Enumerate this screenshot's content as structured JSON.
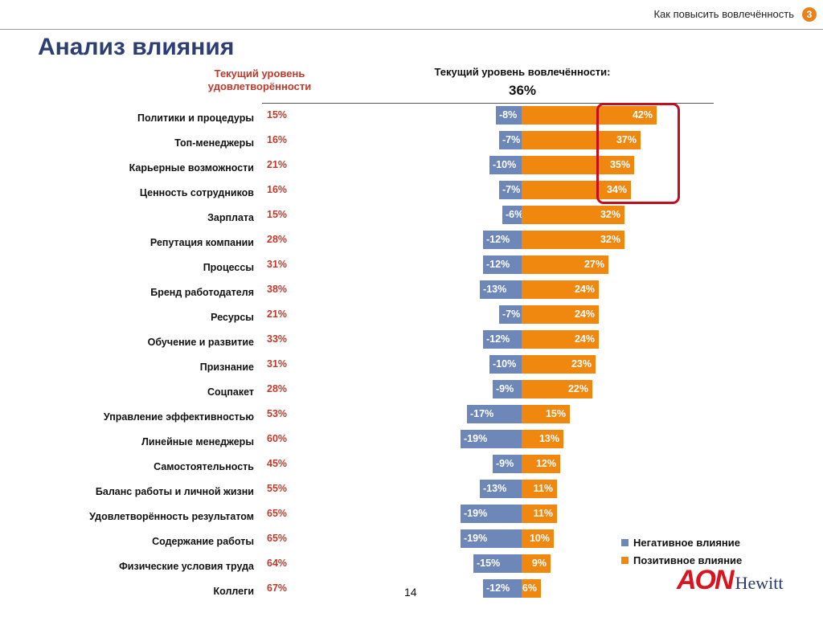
{
  "header": {
    "section_title": "Как повысить вовлечённость",
    "section_number": "3",
    "page_title": "Анализ влияния",
    "satisfaction_header": "Текущий уровень удовлетворённости",
    "engagement_header": "Текущий уровень вовлечённости:",
    "engagement_value": "36%"
  },
  "colors": {
    "negative": "#6d87b8",
    "positive": "#f0870f",
    "title": "#2c3e73",
    "satisfaction": "#c0392b",
    "highlight": "#c40e1e"
  },
  "chart_data": {
    "type": "bar",
    "orientation": "horizontal-diverging",
    "categories": [
      "Политики и процедуры",
      "Топ-менеджеры",
      "Карьерные возможности",
      "Ценность сотрудников",
      "Зарплата",
      "Репутация компании",
      "Процессы",
      "Бренд работодателя",
      "Ресурсы",
      "Обучение и развитие",
      "Признание",
      "Соцпакет",
      "Управление эффективностью",
      "Линейные менеджеры",
      "Самостоятельность",
      "Баланс работы и личной жизни",
      "Удовлетворённость результатом",
      "Содержание работы",
      "Физические условия труда",
      "Коллеги"
    ],
    "satisfaction": [
      "15%",
      "16%",
      "21%",
      "16%",
      "15%",
      "28%",
      "31%",
      "38%",
      "21%",
      "33%",
      "31%",
      "28%",
      "53%",
      "60%",
      "45%",
      "55%",
      "65%",
      "65%",
      "64%",
      "67%"
    ],
    "series": [
      {
        "name": "Негативное влияние",
        "values": [
          -8,
          -7,
          -10,
          -7,
          -6,
          -12,
          -12,
          -13,
          -7,
          -12,
          -10,
          -9,
          -17,
          -19,
          -9,
          -13,
          -19,
          -19,
          -15,
          -12
        ],
        "labels": [
          "-8%",
          "-7%",
          "-10%",
          "-7%",
          "-6%",
          "-12%",
          "-12%",
          "-13%",
          "-7%",
          "-12%",
          "-10%",
          "-9%",
          "-17%",
          "-19%",
          "-9%",
          "-13%",
          "-19%",
          "-19%",
          "-15%",
          "-12%"
        ]
      },
      {
        "name": "Позитивное влияние",
        "values": [
          42,
          37,
          35,
          34,
          32,
          32,
          27,
          24,
          24,
          24,
          23,
          22,
          15,
          13,
          12,
          11,
          11,
          10,
          9,
          6
        ],
        "labels": [
          "42%",
          "37%",
          "35%",
          "34%",
          "32%",
          "32%",
          "27%",
          "24%",
          "24%",
          "24%",
          "23%",
          "22%",
          "15%",
          "13%",
          "12%",
          "11%",
          "11%",
          "10%",
          "9%",
          "6%"
        ]
      }
    ],
    "highlighted_categories": [
      "Политики и процедуры",
      "Топ-менеджеры",
      "Карьерные возможности",
      "Ценность сотрудников"
    ],
    "legend_position": "bottom-right",
    "grid": false
  },
  "footer": {
    "page_number": "14",
    "logo_primary": "AON",
    "logo_secondary": "Hewitt"
  }
}
